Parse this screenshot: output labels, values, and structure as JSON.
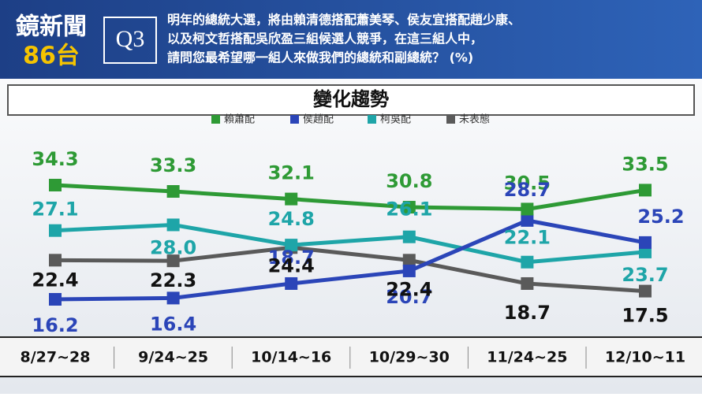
{
  "header": {
    "logo_top": "鏡新聞",
    "logo_bottom": "86台",
    "question_no": "Q3",
    "question_lines": [
      "明年的總統大選，將由賴清德搭配蕭美琴、侯友宜搭配趙少康、",
      "以及柯文哲搭配吳欣盈三組候選人競爭，在這三組人中，",
      "請問您最希望哪一組人來做我們的總統和副總統？ (%)"
    ]
  },
  "chart_data": {
    "type": "line",
    "title": "變化趨勢",
    "categories": [
      "8/27~28",
      "9/24~25",
      "10/14~16",
      "10/29~30",
      "11/24~25",
      "12/10~11"
    ],
    "series": [
      {
        "name": "賴蕭配",
        "color": "#2e9a35",
        "values": [
          34.3,
          33.3,
          32.1,
          30.8,
          30.5,
          33.5
        ]
      },
      {
        "name": "侯趙配",
        "color": "#2b45b8",
        "values": [
          16.2,
          16.4,
          18.7,
          20.7,
          28.7,
          25.2
        ]
      },
      {
        "name": "柯吳配",
        "color": "#1ea5a8",
        "values": [
          27.1,
          28.0,
          24.8,
          26.1,
          22.1,
          23.7
        ],
        "value_labels": [
          "27.1",
          "28.0",
          "24.8",
          "26.1",
          "22.1",
          "23.7"
        ]
      },
      {
        "name": "未表態",
        "color": "#5a5a5a",
        "values": [
          22.4,
          22.3,
          24.4,
          22.4,
          18.7,
          17.5
        ]
      }
    ]
  }
}
